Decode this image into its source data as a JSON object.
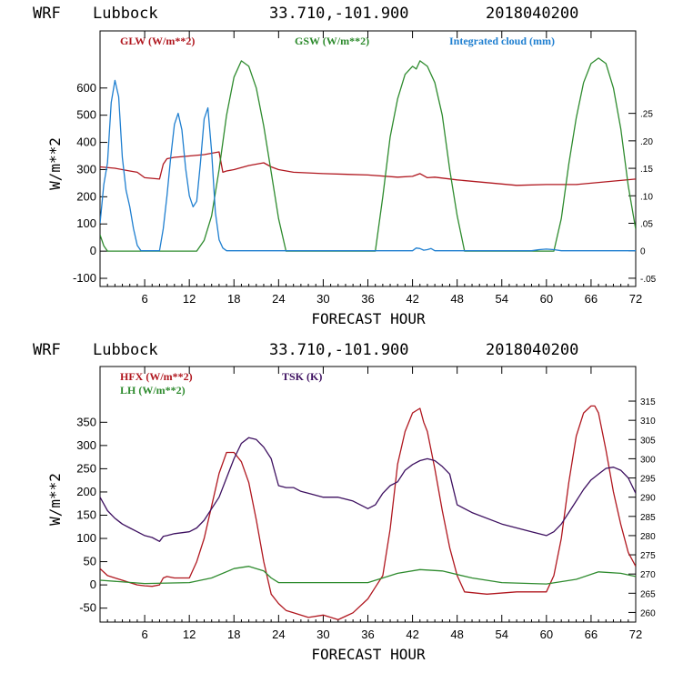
{
  "chart_data": [
    {
      "type": "line",
      "header": {
        "model": "WRF",
        "site": "Lubbock",
        "coords": "33.710,-101.900",
        "run": "2018040200"
      },
      "xlabel": "FORECAST HOUR",
      "ylabel": "W/m**2",
      "xlim": [
        0,
        72
      ],
      "ylim": [
        -130,
        810
      ],
      "yticks": [
        -100,
        0,
        100,
        200,
        300,
        400,
        500,
        600
      ],
      "xticks": [
        6,
        12,
        18,
        24,
        30,
        36,
        42,
        48,
        54,
        60,
        66,
        72
      ],
      "right_axis": {
        "ylim": [
          -0.065,
          0.4
        ],
        "ticks": [
          -0.05,
          0,
          0.05,
          0.1,
          0.15,
          0.2,
          0.25
        ],
        "tick_labels": [
          "-.05",
          "0",
          ".05",
          ".10",
          ".15",
          ".20",
          ".25"
        ]
      },
      "series": [
        {
          "name": "GLW (W/m**2)",
          "color": "#b0171f",
          "axis": "left",
          "x": [
            0,
            2,
            4,
            5,
            6,
            8,
            8.5,
            9,
            10,
            12,
            14,
            15,
            16,
            16.5,
            17,
            18,
            20,
            22,
            23,
            24,
            26,
            30,
            36,
            40,
            42,
            43,
            44,
            45,
            48,
            52,
            56,
            60,
            64,
            68,
            72
          ],
          "y": [
            310,
            305,
            295,
            290,
            270,
            265,
            320,
            340,
            345,
            350,
            355,
            360,
            365,
            290,
            295,
            300,
            315,
            325,
            310,
            300,
            290,
            285,
            280,
            272,
            275,
            285,
            270,
            272,
            262,
            252,
            242,
            245,
            245,
            255,
            265
          ]
        },
        {
          "name": "GSW (W/m**2)",
          "color": "#2e8b2e",
          "axis": "left",
          "x": [
            0,
            0.5,
            1,
            13,
            14,
            15,
            16,
            17,
            18,
            19,
            20,
            21,
            22,
            23,
            24,
            25,
            37,
            38,
            39,
            40,
            41,
            42,
            42.5,
            43,
            44,
            45,
            46,
            47,
            48,
            49,
            61,
            62,
            63,
            64,
            65,
            66,
            67,
            68,
            69,
            70,
            71,
            72
          ],
          "y": [
            60,
            20,
            0,
            0,
            40,
            130,
            300,
            500,
            640,
            700,
            680,
            600,
            460,
            290,
            120,
            0,
            0,
            200,
            420,
            560,
            650,
            680,
            670,
            700,
            680,
            620,
            500,
            300,
            130,
            0,
            0,
            120,
            320,
            490,
            620,
            690,
            710,
            690,
            600,
            450,
            240,
            80
          ]
        },
        {
          "name": "Integrated cloud (mm)",
          "color": "#1f7fd0",
          "axis": "right",
          "x": [
            0,
            0.5,
            1,
            1.5,
            2,
            2.5,
            3,
            3.5,
            4,
            4.5,
            5,
            5.5,
            8,
            8.5,
            9,
            9.5,
            10,
            10.5,
            11,
            11.5,
            12,
            12.5,
            13,
            13.5,
            14,
            14.5,
            15,
            15.5,
            16,
            16.5,
            17,
            36,
            42,
            42.5,
            43,
            43.5,
            44,
            44.5,
            45,
            58,
            59,
            60,
            61,
            62,
            72
          ],
          "y": [
            0.05,
            0.12,
            0.16,
            0.27,
            0.31,
            0.28,
            0.17,
            0.11,
            0.08,
            0.04,
            0.01,
            0,
            0,
            0.04,
            0.1,
            0.17,
            0.23,
            0.25,
            0.22,
            0.15,
            0.1,
            0.08,
            0.09,
            0.16,
            0.24,
            0.26,
            0.18,
            0.07,
            0.02,
            0.005,
            0,
            0,
            0,
            0.005,
            0.004,
            0.001,
            0.002,
            0.004,
            0,
            0,
            0.002,
            0.003,
            0.002,
            0,
            0
          ]
        }
      ]
    },
    {
      "type": "line",
      "header": {
        "model": "WRF",
        "site": "Lubbock",
        "coords": "33.710,-101.900",
        "run": "2018040200"
      },
      "xlabel": "FORECAST HOUR",
      "ylabel": "W/m**2",
      "xlim": [
        0,
        72
      ],
      "ylim": [
        -80,
        470
      ],
      "yticks": [
        -50,
        0,
        50,
        100,
        150,
        200,
        250,
        300,
        350
      ],
      "xticks": [
        6,
        12,
        18,
        24,
        30,
        36,
        42,
        48,
        54,
        60,
        66,
        72
      ],
      "right_axis": {
        "ylim": [
          257.5,
          324
        ],
        "ticks": [
          260,
          265,
          270,
          275,
          280,
          285,
          290,
          295,
          300,
          305,
          310,
          315
        ],
        "tick_labels": [
          "260",
          "265",
          "270",
          "275",
          "280",
          "285",
          "290",
          "295",
          "300",
          "305",
          "310",
          "315"
        ]
      },
      "series": [
        {
          "name": "HFX (W/m**2)",
          "color": "#b0171f",
          "axis": "left",
          "x": [
            0,
            1,
            2,
            3,
            4,
            5,
            6,
            7,
            8,
            8.5,
            9,
            10,
            11,
            12,
            13,
            14,
            15,
            16,
            17,
            18,
            19,
            20,
            21,
            22,
            23,
            24,
            25,
            26,
            28,
            30,
            32,
            34,
            36,
            37,
            38,
            39,
            40,
            41,
            42,
            42.5,
            43,
            43.5,
            44,
            45,
            46,
            47,
            48,
            49,
            52,
            56,
            60,
            61,
            62,
            63,
            64,
            65,
            66,
            66.5,
            67,
            67.5,
            68,
            69,
            70,
            71,
            72
          ],
          "y": [
            35,
            20,
            15,
            10,
            5,
            0,
            -2,
            -3,
            0,
            15,
            18,
            15,
            15,
            15,
            50,
            100,
            170,
            240,
            285,
            285,
            265,
            220,
            140,
            50,
            -20,
            -40,
            -55,
            -60,
            -70,
            -65,
            -75,
            -60,
            -30,
            -5,
            20,
            120,
            260,
            330,
            370,
            375,
            380,
            350,
            330,
            250,
            160,
            80,
            20,
            -15,
            -20,
            -15,
            -15,
            20,
            100,
            220,
            320,
            370,
            385,
            385,
            370,
            330,
            290,
            200,
            130,
            70,
            40
          ]
        },
        {
          "name": "LH (W/m**2)",
          "color": "#2e8b2e",
          "axis": "left",
          "x": [
            0,
            6,
            12,
            15,
            18,
            20,
            22,
            23,
            24,
            28,
            32,
            36,
            38,
            40,
            43,
            46,
            50,
            54,
            60,
            64,
            67,
            70,
            72
          ],
          "y": [
            10,
            3,
            5,
            15,
            35,
            40,
            30,
            15,
            5,
            5,
            5,
            5,
            15,
            25,
            33,
            30,
            15,
            5,
            2,
            12,
            28,
            25,
            18
          ]
        },
        {
          "name": "TSK (K)",
          "color": "#3d1060",
          "axis": "right",
          "x": [
            0,
            1,
            2,
            3,
            4,
            5,
            6,
            7,
            8,
            8.5,
            9,
            10,
            12,
            13,
            14,
            15,
            16,
            17,
            18,
            19,
            20,
            21,
            22,
            23,
            24,
            25,
            26,
            27,
            28,
            30,
            32,
            34,
            36,
            37,
            38,
            39,
            40,
            41,
            42,
            43,
            44,
            45,
            46,
            47,
            48,
            50,
            54,
            58,
            60,
            61,
            62,
            63,
            64,
            65,
            66,
            67,
            68,
            69,
            70,
            71,
            72
          ],
          "y": [
            290,
            286.5,
            284.5,
            283,
            282,
            281,
            280,
            279.5,
            278.5,
            279.8,
            280,
            280.5,
            281,
            282,
            284,
            287,
            290,
            295,
            300,
            304,
            305.5,
            305,
            303,
            300,
            293,
            292.5,
            292.5,
            291.5,
            291,
            290,
            290,
            289,
            287,
            288,
            291,
            293,
            294,
            297,
            298.5,
            299.5,
            300,
            299.5,
            298,
            296,
            288,
            286,
            283,
            281,
            280,
            281,
            283,
            286,
            289,
            292,
            294.5,
            296,
            297.5,
            297.8,
            297,
            295,
            291
          ]
        }
      ]
    }
  ]
}
